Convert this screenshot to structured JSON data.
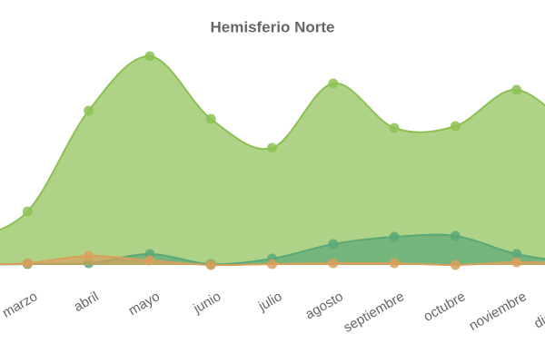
{
  "chart_data": {
    "type": "area",
    "title": "Hemisferio Norte",
    "categories": [
      null,
      "marzo",
      "abril",
      "mayo",
      "junio",
      "julio",
      "agosto",
      "septiembre",
      "octubre",
      "noviembre",
      "diciembre"
    ],
    "ylim": [
      0,
      240
    ],
    "series": [
      {
        "color": "#8cc152",
        "values": [
          27,
          59,
          170,
          230,
          161,
          129,
          200,
          151,
          153,
          193,
          142
        ]
      },
      {
        "color": "#5aa878",
        "values": [
          0,
          1,
          2,
          12,
          1,
          7,
          23,
          31,
          32,
          12,
          2
        ]
      },
      {
        "color": "#d9a05b",
        "values": [
          0,
          2,
          10,
          5,
          0,
          1,
          2,
          2,
          0,
          3,
          1
        ]
      }
    ]
  }
}
